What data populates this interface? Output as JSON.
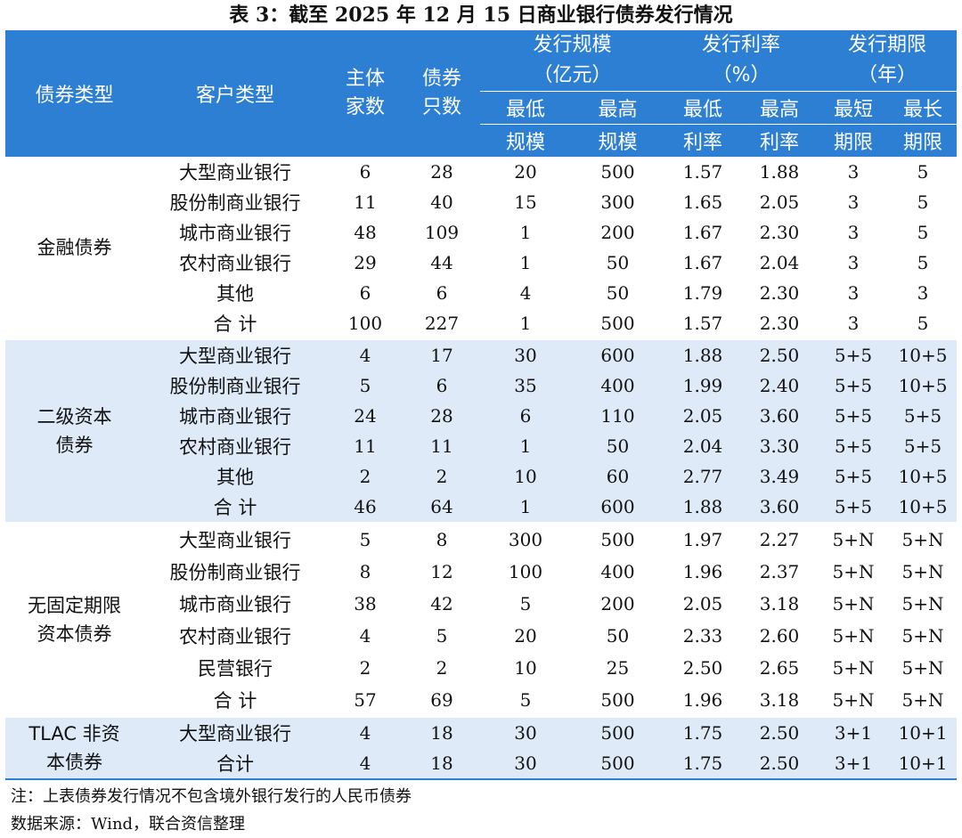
{
  "title": "表 3：截至 2025 年 12 月 15 日商业银行债券发行情况",
  "header": {
    "bond_type": "债券类型",
    "customer_type": "客户类型",
    "issuers": "主体\n家数",
    "bonds": "债券\n只数",
    "scale_group": "发行规模\n（亿元）",
    "rate_group": "发行利率\n（%）",
    "term_group": "发行期限\n（年）",
    "sub1": [
      "最低",
      "最高",
      "最低",
      "最高",
      "最短",
      "最长"
    ],
    "sub2": [
      "规模",
      "规模",
      "利率",
      "利率",
      "期限",
      "期限"
    ]
  },
  "groups": [
    {
      "type": "金融债券",
      "rows": [
        [
          "大型商业银行",
          "6",
          "28",
          "20",
          "500",
          "1.57",
          "1.88",
          "3",
          "5"
        ],
        [
          "股份制商业银行",
          "11",
          "40",
          "15",
          "300",
          "1.65",
          "2.05",
          "3",
          "5"
        ],
        [
          "城市商业银行",
          "48",
          "109",
          "1",
          "200",
          "1.67",
          "2.30",
          "3",
          "5"
        ],
        [
          "农村商业银行",
          "29",
          "44",
          "1",
          "50",
          "1.67",
          "2.04",
          "3",
          "5"
        ],
        [
          "其他",
          "6",
          "6",
          "4",
          "50",
          "1.79",
          "2.30",
          "3",
          "3"
        ],
        [
          "合 计",
          "100",
          "227",
          "1",
          "500",
          "1.57",
          "2.30",
          "3",
          "5"
        ]
      ]
    },
    {
      "type": "二级资本\n债券",
      "rows": [
        [
          "大型商业银行",
          "4",
          "17",
          "30",
          "600",
          "1.88",
          "2.50",
          "5+5",
          "10+5"
        ],
        [
          "股份制商业银行",
          "5",
          "6",
          "35",
          "400",
          "1.99",
          "2.40",
          "5+5",
          "10+5"
        ],
        [
          "城市商业银行",
          "24",
          "28",
          "6",
          "110",
          "2.05",
          "3.60",
          "5+5",
          "5+5"
        ],
        [
          "农村商业银行",
          "11",
          "11",
          "1",
          "50",
          "2.04",
          "3.30",
          "5+5",
          "5+5"
        ],
        [
          "其他",
          "2",
          "2",
          "10",
          "60",
          "2.77",
          "3.49",
          "5+5",
          "10+5"
        ],
        [
          "合 计",
          "46",
          "64",
          "1",
          "600",
          "1.88",
          "3.60",
          "5+5",
          "10+5"
        ]
      ]
    },
    {
      "type": "无固定期限\n资本债券",
      "rows": [
        [
          "大型商业银行",
          "5",
          "8",
          "300",
          "500",
          "1.97",
          "2.27",
          "5+N",
          "5+N"
        ],
        [
          "股份制商业银行",
          "8",
          "12",
          "100",
          "400",
          "1.96",
          "2.37",
          "5+N",
          "5+N"
        ],
        [
          "城市商业银行",
          "38",
          "42",
          "5",
          "200",
          "2.05",
          "3.18",
          "5+N",
          "5+N"
        ],
        [
          "农村商业银行",
          "4",
          "5",
          "20",
          "50",
          "2.33",
          "2.60",
          "5+N",
          "5+N"
        ],
        [
          "民营银行",
          "2",
          "2",
          "10",
          "25",
          "2.50",
          "2.65",
          "5+N",
          "5+N"
        ],
        [
          "合 计",
          "57",
          "69",
          "5",
          "500",
          "1.96",
          "3.18",
          "5+N",
          "5+N"
        ]
      ]
    },
    {
      "type": "TLAC 非资\n本债券",
      "rows": [
        [
          "大型商业银行",
          "4",
          "18",
          "30",
          "500",
          "1.75",
          "2.50",
          "3+1",
          "10+1"
        ],
        [
          "合计",
          "4",
          "18",
          "30",
          "500",
          "1.75",
          "2.50",
          "3+1",
          "10+1"
        ]
      ]
    }
  ],
  "notes": {
    "note1": "注：上表债券发行情况不包含境外银行发行的人民币债券",
    "note2": "数据来源：Wind，联合资信整理"
  },
  "colors": {
    "header_bg": "#2d7fd4",
    "band_bg": "#deeaf7"
  }
}
